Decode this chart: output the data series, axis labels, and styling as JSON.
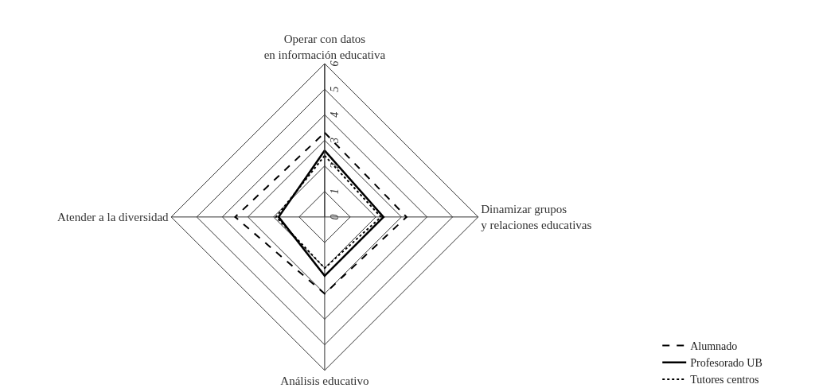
{
  "chart_data": {
    "type": "radar",
    "categories": [
      "Operar con datos\nen información educativa",
      "Dinamizar grupos\ny relaciones educativas",
      "Análisis educativo",
      "Atender a la diversidad"
    ],
    "ylim": [
      0,
      6
    ],
    "yticks": [
      0,
      1,
      2,
      3,
      4,
      5,
      6
    ],
    "grid": true,
    "legend": "bottom right",
    "marker": "none",
    "series": [
      {
        "name": "Alumnado",
        "color": "#000000",
        "line_style": "dashed",
        "values": [
          3.3,
          3.2,
          3.0,
          3.5
        ]
      },
      {
        "name": "Profesorado UB",
        "color": "#000000",
        "line_style": "solid",
        "values": [
          2.6,
          2.3,
          2.3,
          1.8
        ]
      },
      {
        "name": "Tutores centros",
        "color": "#000000",
        "line_style": "dotted",
        "values": [
          2.4,
          2.2,
          2.0,
          1.9
        ]
      }
    ]
  }
}
